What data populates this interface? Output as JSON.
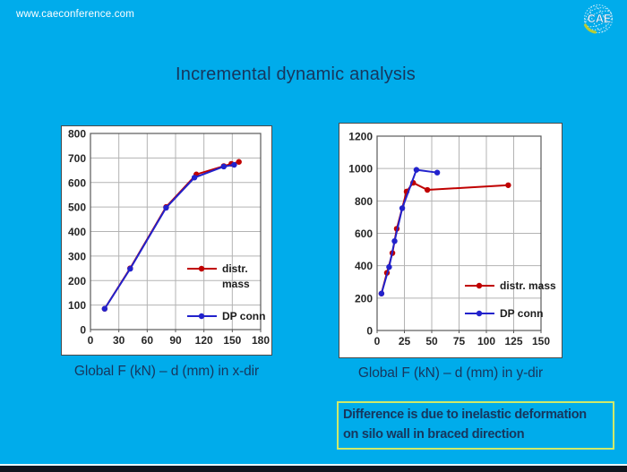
{
  "header": {
    "website": "www.caeconference.com",
    "logo_text": "CAE"
  },
  "title": "Incremental dynamic analysis",
  "note": {
    "line1": "Difference is due to inelastic deformation",
    "line2": "on silo wall in braced direction"
  },
  "colors": {
    "background": "#00aceb",
    "accent_text": "#17365d",
    "note_border": "#cfe96a",
    "series_red": "#c00000",
    "series_blue": "#2222cc"
  },
  "chart_data": [
    {
      "type": "line",
      "caption": "Global F (kN) – d (mm) in x-dir",
      "title": "",
      "xlabel": "",
      "ylabel": "",
      "xlim": [
        0,
        180
      ],
      "ylim": [
        0,
        800
      ],
      "xticks": [
        0,
        30,
        60,
        90,
        120,
        150,
        180
      ],
      "yticks": [
        0,
        100,
        200,
        300,
        400,
        500,
        600,
        700,
        800
      ],
      "grid": true,
      "legend_position": "inside-lower-right",
      "series": [
        {
          "name": "distr. mass",
          "label_lines": [
            "distr.",
            "mass"
          ],
          "color": "#c00000",
          "points": [
            [
              15,
              85
            ],
            [
              42,
              250
            ],
            [
              80,
              500
            ],
            [
              112,
              633
            ],
            [
              141,
              667
            ],
            [
              149,
              676
            ],
            [
              157,
              684
            ]
          ]
        },
        {
          "name": "DP conn",
          "label_lines": [
            "DP conn"
          ],
          "color": "#2222cc",
          "points": [
            [
              15,
              85
            ],
            [
              42,
              248
            ],
            [
              80,
              497
            ],
            [
              110,
              620
            ],
            [
              141,
              665
            ],
            [
              152,
              672
            ]
          ]
        }
      ]
    },
    {
      "type": "line",
      "caption": "Global F (kN) – d (mm) in y-dir",
      "title": "",
      "xlabel": "",
      "ylabel": "",
      "xlim": [
        0,
        150
      ],
      "ylim": [
        0,
        1200
      ],
      "xticks": [
        0,
        25,
        50,
        75,
        100,
        125,
        150
      ],
      "yticks": [
        0,
        200,
        400,
        600,
        800,
        1000,
        1200
      ],
      "grid": true,
      "legend_position": "inside-lower-right",
      "series": [
        {
          "name": "distr. mass",
          "label_lines": [
            "distr. mass"
          ],
          "color": "#c00000",
          "points": [
            [
              4,
              228
            ],
            [
              9,
              356
            ],
            [
              14,
              478
            ],
            [
              18,
              628
            ],
            [
              27,
              858
            ],
            [
              33,
              912
            ],
            [
              46,
              868
            ],
            [
              120,
              897
            ]
          ]
        },
        {
          "name": "DP conn",
          "label_lines": [
            "DP conn"
          ],
          "color": "#2222cc",
          "points": [
            [
              4,
              228
            ],
            [
              11,
              392
            ],
            [
              16,
              552
            ],
            [
              23,
              755
            ],
            [
              36,
              992
            ],
            [
              55,
              975
            ]
          ]
        }
      ]
    }
  ]
}
